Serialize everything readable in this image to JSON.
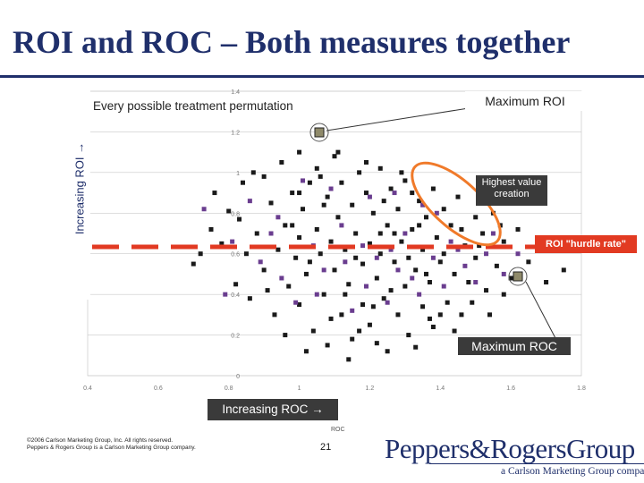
{
  "slide": {
    "title": "ROI and ROC – Both measures together",
    "copyright_line1": "©2006 Carlson Marketing Group, Inc. All rights reserved.",
    "copyright_line2": "Peppers & Rogers Group is a Carlson Marketing Group company.",
    "page_number": "21",
    "brand_name": "Peppers&RogersGroup",
    "brand_tagline": "a Carlson Marketing Group company"
  },
  "annotations": {
    "every_permutation": "Every possible treatment permutation",
    "max_roi": "Maximum ROI",
    "highest_value": "Highest value creation",
    "hurdle": "ROI \"hurdle rate\"",
    "max_roc": "Maximum ROC",
    "y_axis_banner": "Increasing ROI →",
    "x_axis_banner": "Increasing ROC →"
  },
  "colors": {
    "title": "#1f2f6b",
    "points_dark": "#1a1a1a",
    "points_purple": "#6a3d8f",
    "hurdle_line": "#e23a22",
    "highlight_ellipse": "#f07a2a",
    "banner_bg": "#3a3a3a"
  },
  "chart_data": {
    "type": "scatter",
    "title": "",
    "xlabel": "ROC",
    "ylabel": "",
    "xlim": [
      0.4,
      1.8
    ],
    "ylim": [
      0,
      1.4
    ],
    "x_ticks": [
      "0.4",
      "0.6",
      "0.8",
      "1",
      "1.2",
      "1.4",
      "1.6",
      "1.8"
    ],
    "y_ticks": [
      "0",
      "0.2",
      "0.4",
      "0.6",
      "0.8",
      "1",
      "1.2",
      "1.4"
    ],
    "grid": true,
    "hurdle_rate_y": 0.68,
    "max_roi_point": {
      "x": 1.15,
      "y": 1.2
    },
    "max_roc_point": {
      "x": 1.74,
      "y": 0.62
    },
    "series": [
      {
        "style": "dark",
        "points": [
          [
            0.7,
            0.55
          ],
          [
            0.72,
            0.6
          ],
          [
            0.75,
            0.72
          ],
          [
            0.78,
            0.65
          ],
          [
            0.8,
            0.81
          ],
          [
            0.82,
            0.45
          ],
          [
            0.84,
            0.95
          ],
          [
            0.85,
            0.6
          ],
          [
            0.86,
            0.38
          ],
          [
            0.88,
            0.7
          ],
          [
            0.9,
            0.98
          ],
          [
            0.9,
            0.52
          ],
          [
            0.92,
            0.85
          ],
          [
            0.93,
            0.3
          ],
          [
            0.94,
            0.62
          ],
          [
            0.95,
            1.05
          ],
          [
            0.96,
            0.74
          ],
          [
            0.97,
            0.44
          ],
          [
            0.98,
            0.9
          ],
          [
            0.99,
            0.58
          ],
          [
            1.0,
            1.1
          ],
          [
            1.0,
            0.68
          ],
          [
            1.0,
            0.35
          ],
          [
            1.01,
            0.82
          ],
          [
            1.02,
            0.5
          ],
          [
            1.03,
            0.95
          ],
          [
            1.04,
            0.22
          ],
          [
            1.05,
            0.72
          ],
          [
            1.05,
            1.02
          ],
          [
            1.06,
            0.6
          ],
          [
            1.07,
            0.4
          ],
          [
            1.08,
            0.88
          ],
          [
            1.08,
            0.15
          ],
          [
            1.09,
            0.66
          ],
          [
            1.1,
            1.08
          ],
          [
            1.1,
            0.52
          ],
          [
            1.11,
            0.78
          ],
          [
            1.12,
            0.3
          ],
          [
            1.12,
            0.95
          ],
          [
            1.13,
            0.62
          ],
          [
            1.14,
            0.45
          ],
          [
            1.15,
            0.84
          ],
          [
            1.15,
            0.18
          ],
          [
            1.16,
            0.7
          ],
          [
            1.17,
            1.0
          ],
          [
            1.18,
            0.55
          ],
          [
            1.18,
            0.35
          ],
          [
            1.19,
            0.9
          ],
          [
            1.2,
            0.65
          ],
          [
            1.2,
            0.25
          ],
          [
            1.21,
            0.8
          ],
          [
            1.22,
            0.48
          ],
          [
            1.23,
            1.02
          ],
          [
            1.23,
            0.6
          ],
          [
            1.24,
            0.38
          ],
          [
            1.25,
            0.74
          ],
          [
            1.25,
            0.12
          ],
          [
            1.26,
            0.92
          ],
          [
            1.27,
            0.56
          ],
          [
            1.28,
            0.3
          ],
          [
            1.28,
            0.82
          ],
          [
            1.29,
            0.66
          ],
          [
            1.3,
            0.44
          ],
          [
            1.3,
            0.96
          ],
          [
            1.31,
            0.2
          ],
          [
            1.32,
            0.72
          ],
          [
            1.33,
            0.52
          ],
          [
            1.34,
            0.86
          ],
          [
            1.35,
            0.34
          ],
          [
            1.35,
            0.62
          ],
          [
            1.36,
            0.78
          ],
          [
            1.37,
            0.46
          ],
          [
            1.38,
            0.92
          ],
          [
            1.38,
            0.24
          ],
          [
            1.39,
            0.68
          ],
          [
            1.4,
            0.56
          ],
          [
            1.41,
            0.82
          ],
          [
            1.42,
            0.36
          ],
          [
            1.43,
            0.74
          ],
          [
            1.44,
            0.5
          ],
          [
            1.45,
            0.88
          ],
          [
            1.46,
            0.3
          ],
          [
            1.47,
            0.64
          ],
          [
            1.48,
            0.46
          ],
          [
            1.5,
            0.78
          ],
          [
            1.5,
            0.58
          ],
          [
            1.52,
            0.7
          ],
          [
            1.53,
            0.42
          ],
          [
            1.55,
            0.8
          ],
          [
            1.56,
            0.54
          ],
          [
            1.58,
            0.66
          ],
          [
            1.6,
            0.48
          ],
          [
            1.62,
            0.72
          ],
          [
            1.65,
            0.56
          ],
          [
            1.68,
            0.62
          ],
          [
            1.7,
            0.46
          ],
          [
            1.75,
            0.52
          ],
          [
            0.76,
            0.9
          ],
          [
            0.83,
            0.77
          ],
          [
            0.87,
            1.0
          ],
          [
            0.91,
            0.42
          ],
          [
            0.96,
            0.2
          ],
          [
            1.02,
            0.12
          ],
          [
            1.06,
            0.98
          ],
          [
            1.11,
            1.1
          ],
          [
            1.14,
            0.08
          ],
          [
            1.19,
            1.05
          ],
          [
            1.22,
            0.16
          ],
          [
            1.26,
            0.42
          ],
          [
            1.29,
            1.0
          ],
          [
            1.33,
            0.14
          ],
          [
            1.37,
            0.28
          ],
          [
            1.41,
            0.6
          ],
          [
            1.44,
            0.22
          ],
          [
            1.49,
            0.36
          ],
          [
            1.54,
            0.3
          ],
          [
            1.58,
            0.4
          ],
          [
            0.98,
            0.74
          ],
          [
            1.03,
            0.56
          ],
          [
            1.07,
            0.84
          ],
          [
            1.13,
            0.4
          ],
          [
            1.16,
            0.58
          ],
          [
            1.21,
            0.34
          ],
          [
            1.24,
            0.86
          ],
          [
            1.27,
            0.7
          ],
          [
            1.31,
            0.58
          ],
          [
            1.34,
            0.74
          ],
          [
            1.0,
            0.9
          ],
          [
            1.09,
            0.28
          ],
          [
            1.17,
            0.22
          ],
          [
            1.23,
            0.7
          ],
          [
            1.32,
            0.9
          ],
          [
            1.36,
            0.5
          ],
          [
            1.4,
            0.3
          ],
          [
            1.46,
            0.72
          ],
          [
            1.51,
            0.64
          ],
          [
            1.57,
            0.74
          ]
        ]
      },
      {
        "style": "purple",
        "points": [
          [
            0.73,
            0.82
          ],
          [
            0.79,
            0.4
          ],
          [
            0.81,
            0.66
          ],
          [
            0.86,
            0.86
          ],
          [
            0.89,
            0.56
          ],
          [
            0.92,
            0.7
          ],
          [
            0.95,
            0.48
          ],
          [
            0.99,
            0.36
          ],
          [
            1.01,
            0.96
          ],
          [
            1.04,
            0.64
          ],
          [
            1.07,
            0.52
          ],
          [
            1.09,
            0.92
          ],
          [
            1.12,
            0.74
          ],
          [
            1.15,
            0.32
          ],
          [
            1.18,
            0.64
          ],
          [
            1.2,
            0.88
          ],
          [
            1.22,
            0.58
          ],
          [
            1.25,
            0.36
          ],
          [
            1.27,
            0.9
          ],
          [
            1.3,
            0.7
          ],
          [
            1.32,
            0.48
          ],
          [
            1.35,
            0.84
          ],
          [
            1.38,
            0.58
          ],
          [
            1.41,
            0.44
          ],
          [
            1.43,
            0.66
          ],
          [
            1.47,
            0.54
          ],
          [
            1.5,
            0.46
          ],
          [
            1.53,
            0.6
          ],
          [
            1.58,
            0.5
          ],
          [
            1.62,
            0.6
          ],
          [
            0.94,
            0.78
          ],
          [
            1.05,
            0.4
          ],
          [
            1.13,
            0.56
          ],
          [
            1.19,
            0.44
          ],
          [
            1.26,
            0.62
          ],
          [
            1.34,
            0.4
          ],
          [
            1.39,
            0.8
          ],
          [
            1.45,
            0.62
          ],
          [
            1.55,
            0.7
          ],
          [
            1.28,
            0.52
          ]
        ]
      }
    ]
  }
}
